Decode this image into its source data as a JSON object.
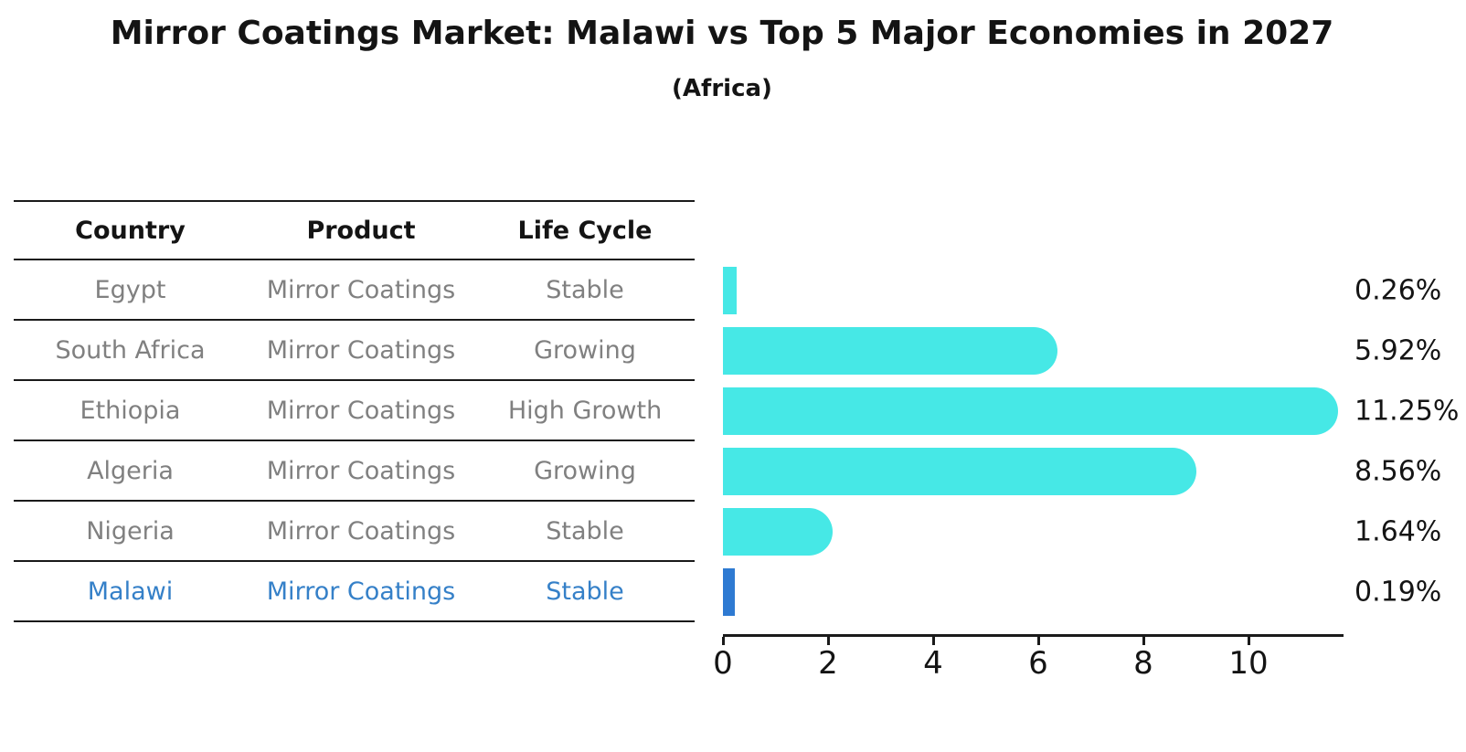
{
  "title": "Mirror Coatings Market: Malawi vs Top 5 Major Economies in 2027",
  "subtitle": "(Africa)",
  "table": {
    "headers": [
      "Country",
      "Product",
      "Life Cycle"
    ],
    "rows": [
      {
        "country": "Egypt",
        "product": "Mirror Coatings",
        "life_cycle": "Stable",
        "highlighted": false
      },
      {
        "country": "South Africa",
        "product": "Mirror Coatings",
        "life_cycle": "Growing",
        "highlighted": false
      },
      {
        "country": "Ethiopia",
        "product": "Mirror Coatings",
        "life_cycle": "High Growth",
        "highlighted": false
      },
      {
        "country": "Algeria",
        "product": "Mirror Coatings",
        "life_cycle": "Growing",
        "highlighted": false
      },
      {
        "country": "Nigeria",
        "product": "Mirror Coatings",
        "life_cycle": "Stable",
        "highlighted": false
      },
      {
        "country": "Malawi",
        "product": "Mirror Coatings",
        "life_cycle": "Stable",
        "highlighted": true
      }
    ]
  },
  "chart_data": {
    "type": "bar",
    "orientation": "horizontal",
    "categories": [
      "Egypt",
      "South Africa",
      "Ethiopia",
      "Algeria",
      "Nigeria",
      "Malawi"
    ],
    "values": [
      0.26,
      5.92,
      11.25,
      8.56,
      1.64,
      0.19
    ],
    "value_labels": [
      "0.26%",
      "5.92%",
      "11.25%",
      "8.56%",
      "1.64%",
      "0.19%"
    ],
    "x_ticks": [
      0,
      2,
      4,
      6,
      8,
      10
    ],
    "xlim": [
      0,
      11.8
    ],
    "grid": false,
    "legend": false,
    "bar_color": "#46e8e6",
    "highlight_index": 5,
    "highlight_bar_color": "#2e7ad2",
    "highlight_text_color": "#3580c8"
  },
  "colors": {
    "row_text": "#808080",
    "header_text": "#141414",
    "axis": "#1a1a1a",
    "background": "#ffffff"
  }
}
